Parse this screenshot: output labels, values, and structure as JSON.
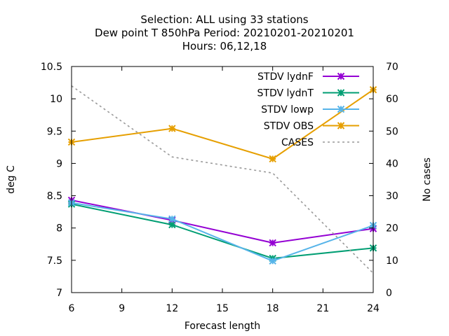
{
  "chart_data": {
    "type": "line",
    "title_lines": [
      "Selection: ALL using    33 stations",
      "Dew point T 850hPa   Period: 20210201-20210201",
      "Hours:  06,12,18"
    ],
    "xlabel": "Forecast length",
    "ylabel": "deg C",
    "y2label": "No cases",
    "x": [
      6,
      12,
      18,
      24
    ],
    "xlim": [
      6,
      24
    ],
    "ylim": [
      7,
      10.5
    ],
    "y2lim": [
      0,
      70
    ],
    "xticks": [
      "6",
      "9",
      "12",
      "15",
      "18",
      "21",
      "24"
    ],
    "yticks": [
      "7",
      "7.5",
      "8",
      "8.5",
      "9",
      "9.5",
      "10",
      "10.5"
    ],
    "y2ticks": [
      "0",
      "10",
      "20",
      "30",
      "40",
      "50",
      "60",
      "70"
    ],
    "legend_position": "top-right",
    "grid": false,
    "series": [
      {
        "name": "STDV lydnF",
        "values": [
          8.43,
          8.12,
          7.77,
          7.99
        ],
        "color": "#9400d3",
        "marker": "x-star",
        "axis": "y"
      },
      {
        "name": "STDV lydnT",
        "values": [
          8.37,
          8.05,
          7.53,
          7.69
        ],
        "color": "#009e73",
        "marker": "x-star",
        "axis": "y"
      },
      {
        "name": "STDV lowp",
        "values": [
          8.39,
          8.14,
          7.49,
          8.04
        ],
        "color": "#56b4e9",
        "marker": "x-star",
        "axis": "y"
      },
      {
        "name": "STDV OBS",
        "values": [
          9.33,
          9.54,
          9.07,
          10.14
        ],
        "color": "#e69f00",
        "marker": "x-star",
        "axis": "y"
      },
      {
        "name": "CASES",
        "values": [
          64,
          42,
          37,
          6
        ],
        "color": "#999999",
        "marker": "none",
        "dashed": true,
        "axis": "y2"
      }
    ]
  }
}
